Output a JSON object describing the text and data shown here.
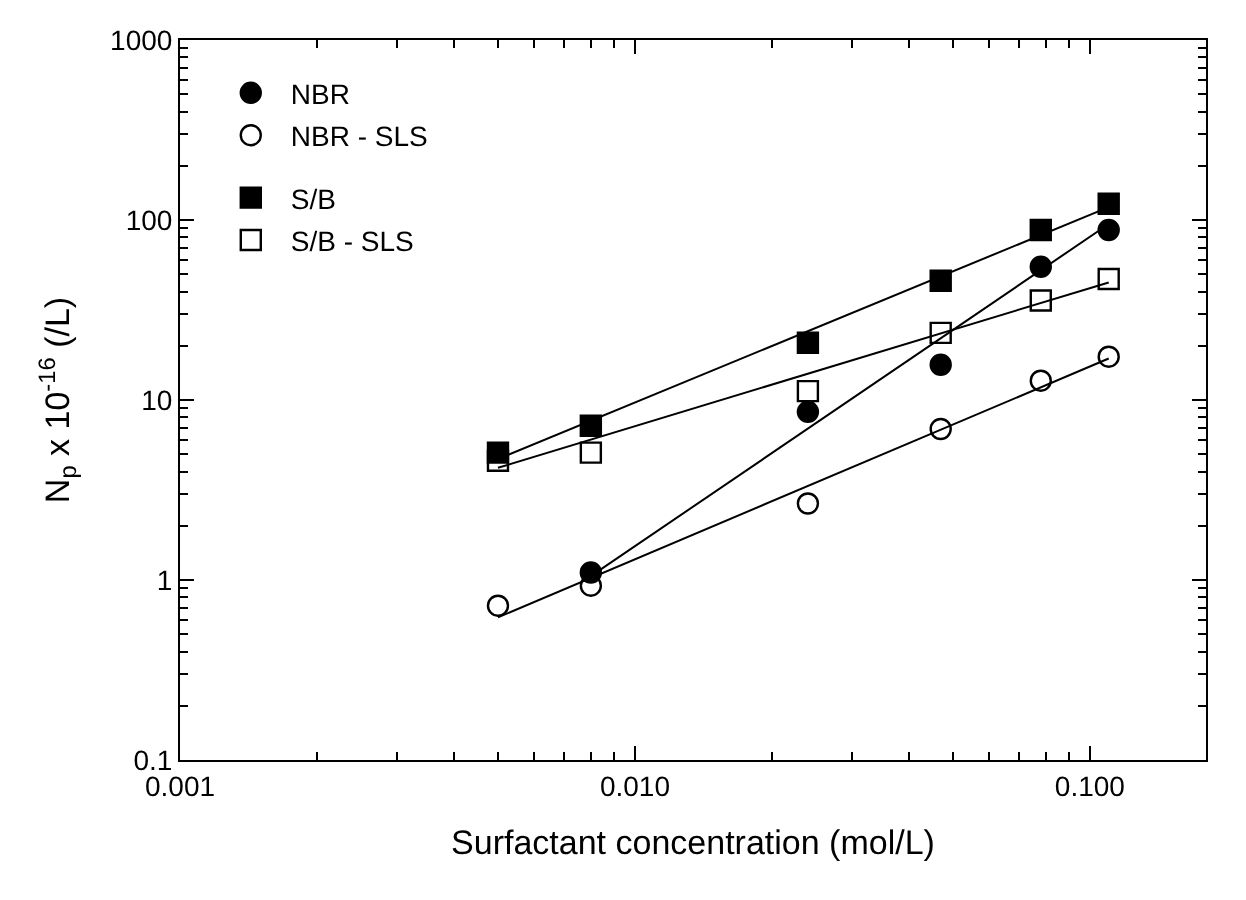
{
  "chart_data": {
    "type": "scatter",
    "xlabel": "Surfactant concentration (mol/L)",
    "ylabel": "N$_{p}$ x 10$^{-16}$ (/L)",
    "log": "xy",
    "xlim": [
      0.001,
      0.18
    ],
    "ylim": [
      0.1,
      1000
    ],
    "xticks": [
      {
        "value": 0.001,
        "label": "0.001"
      },
      {
        "value": 0.01,
        "label": "0.010"
      },
      {
        "value": 0.1,
        "label": "0.100"
      }
    ],
    "yticks": [
      {
        "value": 0.1,
        "label": "0.1"
      },
      1,
      10,
      100,
      1000
    ],
    "legend": "top left",
    "series": [
      {
        "name": "NBR",
        "color": "#000000",
        "marker": "circle",
        "x": [
          0.008,
          0.024,
          0.047,
          0.078,
          0.11
        ],
        "values": [
          1.1,
          8.6,
          15.7,
          55,
          88
        ]
      },
      {
        "name": "NBR - SLS",
        "color": "#000000",
        "marker": "circle-open",
        "x": [
          0.005,
          0.008,
          0.024,
          0.047,
          0.078,
          0.11
        ],
        "values": [
          0.72,
          0.93,
          2.66,
          6.9,
          12.8,
          17.4
        ]
      },
      {
        "name": "S/B",
        "color": "#000000",
        "marker": "square",
        "x": [
          0.005,
          0.008,
          0.024,
          0.047,
          0.078,
          0.11
        ],
        "values": [
          5.1,
          7.2,
          20.8,
          46,
          88,
          123
        ]
      },
      {
        "name": "S/B - SLS",
        "color": "#000000",
        "marker": "square-open",
        "x": [
          0.005,
          0.008,
          0.024,
          0.047,
          0.078,
          0.11
        ],
        "values": [
          4.6,
          5.1,
          11.2,
          23.6,
          35.7,
          47
        ]
      },
      {
        "type": "line",
        "color": "#000000",
        "marker": "none",
        "x": [
          0.008,
          0.11
        ],
        "values": [
          1.05,
          95
        ]
      },
      {
        "type": "line",
        "color": "#000000",
        "marker": "none",
        "x": [
          0.005,
          0.11
        ],
        "values": [
          0.62,
          17
        ]
      },
      {
        "type": "line",
        "color": "#000000",
        "marker": "none",
        "x": [
          0.005,
          0.11
        ],
        "values": [
          4.7,
          118
        ]
      },
      {
        "type": "line",
        "color": "#000000",
        "marker": "none",
        "x": [
          0.005,
          0.11
        ],
        "values": [
          4.2,
          45
        ]
      }
    ]
  }
}
